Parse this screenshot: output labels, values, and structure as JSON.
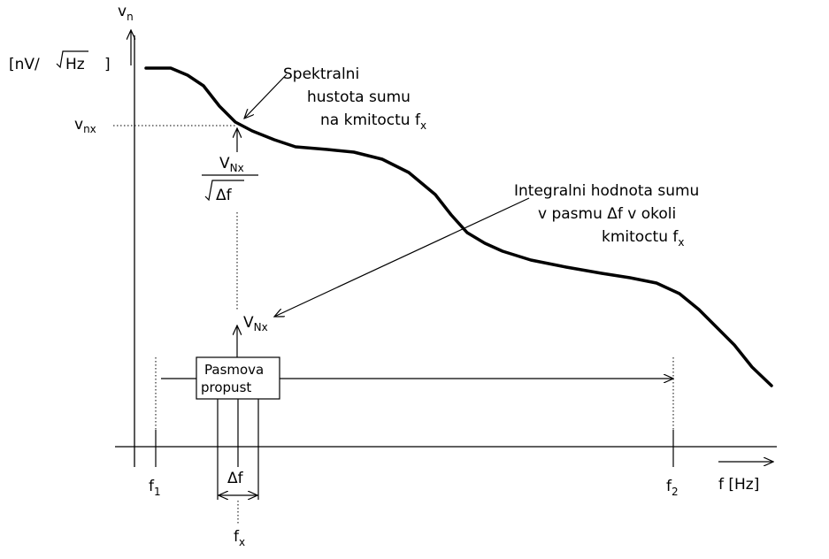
{
  "y_axis": {
    "symbol": "v",
    "symbol_sub": "n",
    "unit_open": "[nV/",
    "unit_root": "Hz",
    "unit_close": "]"
  },
  "x_axis": {
    "label": "f  [Hz]"
  },
  "level": {
    "symbol": "v",
    "symbol_sub": "nx"
  },
  "annotation_spectral": {
    "line1": "Spektralni",
    "line2": "hustota sumu",
    "line3": "na kmitoctu f",
    "line3_sub": "x"
  },
  "annotation_integral": {
    "line1": "Integralni hodnota sumu",
    "line2": "v pasmu Δf v okoli",
    "line3": "kmitoctu f",
    "line3_sub": "x"
  },
  "fraction": {
    "numerator": "V",
    "numerator_sub": "Nx",
    "denominator": "Δf"
  },
  "vnx_label": {
    "text": "V",
    "sub": "Nx"
  },
  "filter_box": {
    "line1": "Pasmova",
    "line2": "propust"
  },
  "markers": {
    "f1": "f",
    "f1_sub": "1",
    "f2": "f",
    "f2_sub": "2",
    "fx": "f",
    "fx_sub": "x",
    "df": "Δf"
  },
  "colors": {
    "ink": "#000000",
    "background": "#ffffff"
  }
}
